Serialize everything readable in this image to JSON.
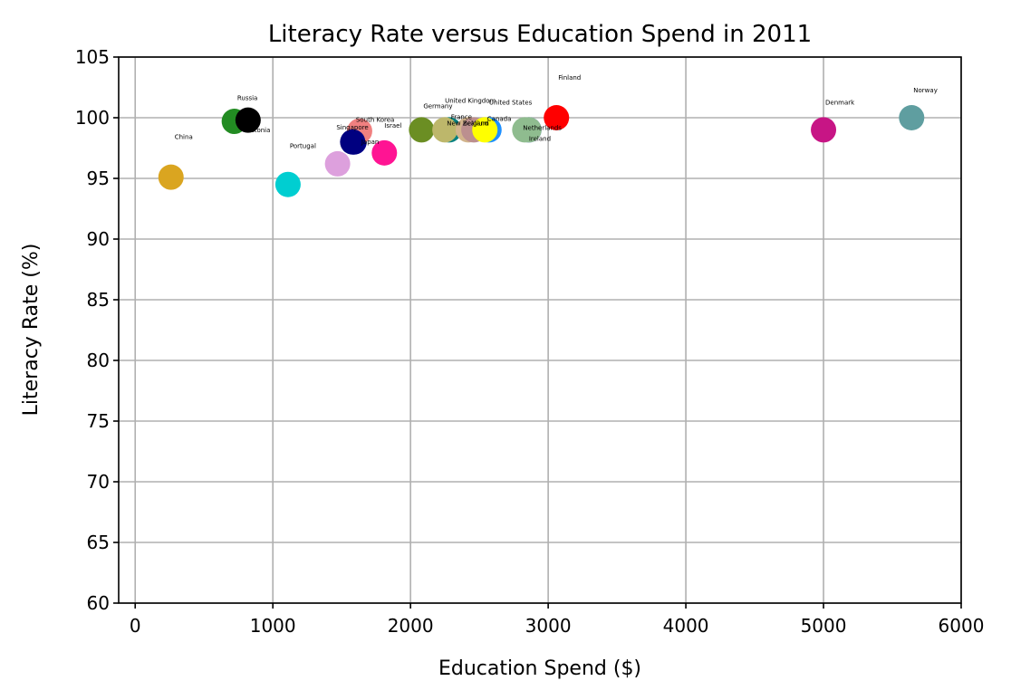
{
  "chart_data": {
    "type": "scatter",
    "title": "Literacy Rate versus Education Spend in 2011",
    "xlabel": "Education Spend ($)",
    "ylabel": "Literacy Rate (%)",
    "xlim": [
      -120,
      6000
    ],
    "ylim": [
      60,
      105
    ],
    "xticks": [
      0,
      1000,
      2000,
      3000,
      4000,
      5000,
      6000
    ],
    "yticks": [
      60,
      65,
      70,
      75,
      80,
      85,
      90,
      95,
      100,
      105
    ],
    "grid": true,
    "points": [
      {
        "label": "China",
        "x": 260,
        "y": 95.1,
        "color": "#DAA520"
      },
      {
        "label": "Estonia",
        "x": 720,
        "y": 99.7,
        "color": "#228B22"
      },
      {
        "label": "Russia",
        "x": 820,
        "y": 99.8,
        "color": "#000000"
      },
      {
        "label": "Portugal",
        "x": 1110,
        "y": 94.5,
        "color": "#00CED1"
      },
      {
        "label": "",
        "x": 1470,
        "y": 96.2,
        "color": "#DDA0DD"
      },
      {
        "label": "Japan",
        "x": 1590,
        "y": 98.0,
        "color": "#00008B"
      },
      {
        "label": "South Korea",
        "x": 1630,
        "y": 98.9,
        "color": "#F08080"
      },
      {
        "label": "Singapore",
        "x": 1580,
        "y": 98.0,
        "color": "#000080"
      },
      {
        "label": "Israel",
        "x": 1810,
        "y": 97.1,
        "color": "#FF1493"
      },
      {
        "label": "Germany",
        "x": 2080,
        "y": 99.0,
        "color": "#6B8E23"
      },
      {
        "label": "France",
        "x": 2280,
        "y": 99.0,
        "color": "#008080"
      },
      {
        "label": "United Kingdom",
        "x": 2250,
        "y": 99.0,
        "color": "#BDB76B"
      },
      {
        "label": "Belgium",
        "x": 2420,
        "y": 99.0,
        "color": "#D2B48C"
      },
      {
        "label": "",
        "x": 2460,
        "y": 99.0,
        "color": "#BC8F8F"
      },
      {
        "label": "Canada",
        "x": 2570,
        "y": 99.0,
        "color": "#1E90FF"
      },
      {
        "label": "New Zealand",
        "x": 2540,
        "y": 99.0,
        "color": "#FFFF00"
      },
      {
        "label": "United States",
        "x": 2860,
        "y": 99.0,
        "color": "#4169E1"
      },
      {
        "label": "Netherlands",
        "x": 2830,
        "y": 99.0,
        "color": "#8FBC8F"
      },
      {
        "label": "Ireland",
        "x": 2860,
        "y": 99.0,
        "color": "#8FBC8F"
      },
      {
        "label": "Finland",
        "x": 3060,
        "y": 100.0,
        "color": "#FF0000"
      },
      {
        "label": "Denmark",
        "x": 5000,
        "y": 99.0,
        "color": "#C71585"
      },
      {
        "label": "Norway",
        "x": 5640,
        "y": 100.0,
        "color": "#5F9EA0"
      }
    ],
    "label_offsets": [
      {
        "dx": 4,
        "dy": -42
      },
      {
        "dx": 14,
        "dy": 12
      },
      {
        "dx": -12,
        "dy": -22
      },
      {
        "dx": 2,
        "dy": -40
      },
      {
        "dx": 0,
        "dy": 0
      },
      {
        "dx": 8,
        "dy": 2
      },
      {
        "dx": -4,
        "dy": -10
      },
      {
        "dx": -18,
        "dy": -14
      },
      {
        "dx": 0,
        "dy": -28
      },
      {
        "dx": 2,
        "dy": -24
      },
      {
        "dx": 2,
        "dy": -12
      },
      {
        "dx": 0,
        "dy": -30
      },
      {
        "dx": -6,
        "dy": -5
      },
      {
        "dx": 0,
        "dy": 0
      },
      {
        "dx": -2,
        "dy": -10
      },
      {
        "dx": -42,
        "dy": -5
      },
      {
        "dx": -44,
        "dy": -28
      },
      {
        "dx": -2,
        "dy": 0
      },
      {
        "dx": 0,
        "dy": 12
      },
      {
        "dx": 2,
        "dy": -42
      },
      {
        "dx": 2,
        "dy": -28
      },
      {
        "dx": 2,
        "dy": -28
      }
    ]
  }
}
